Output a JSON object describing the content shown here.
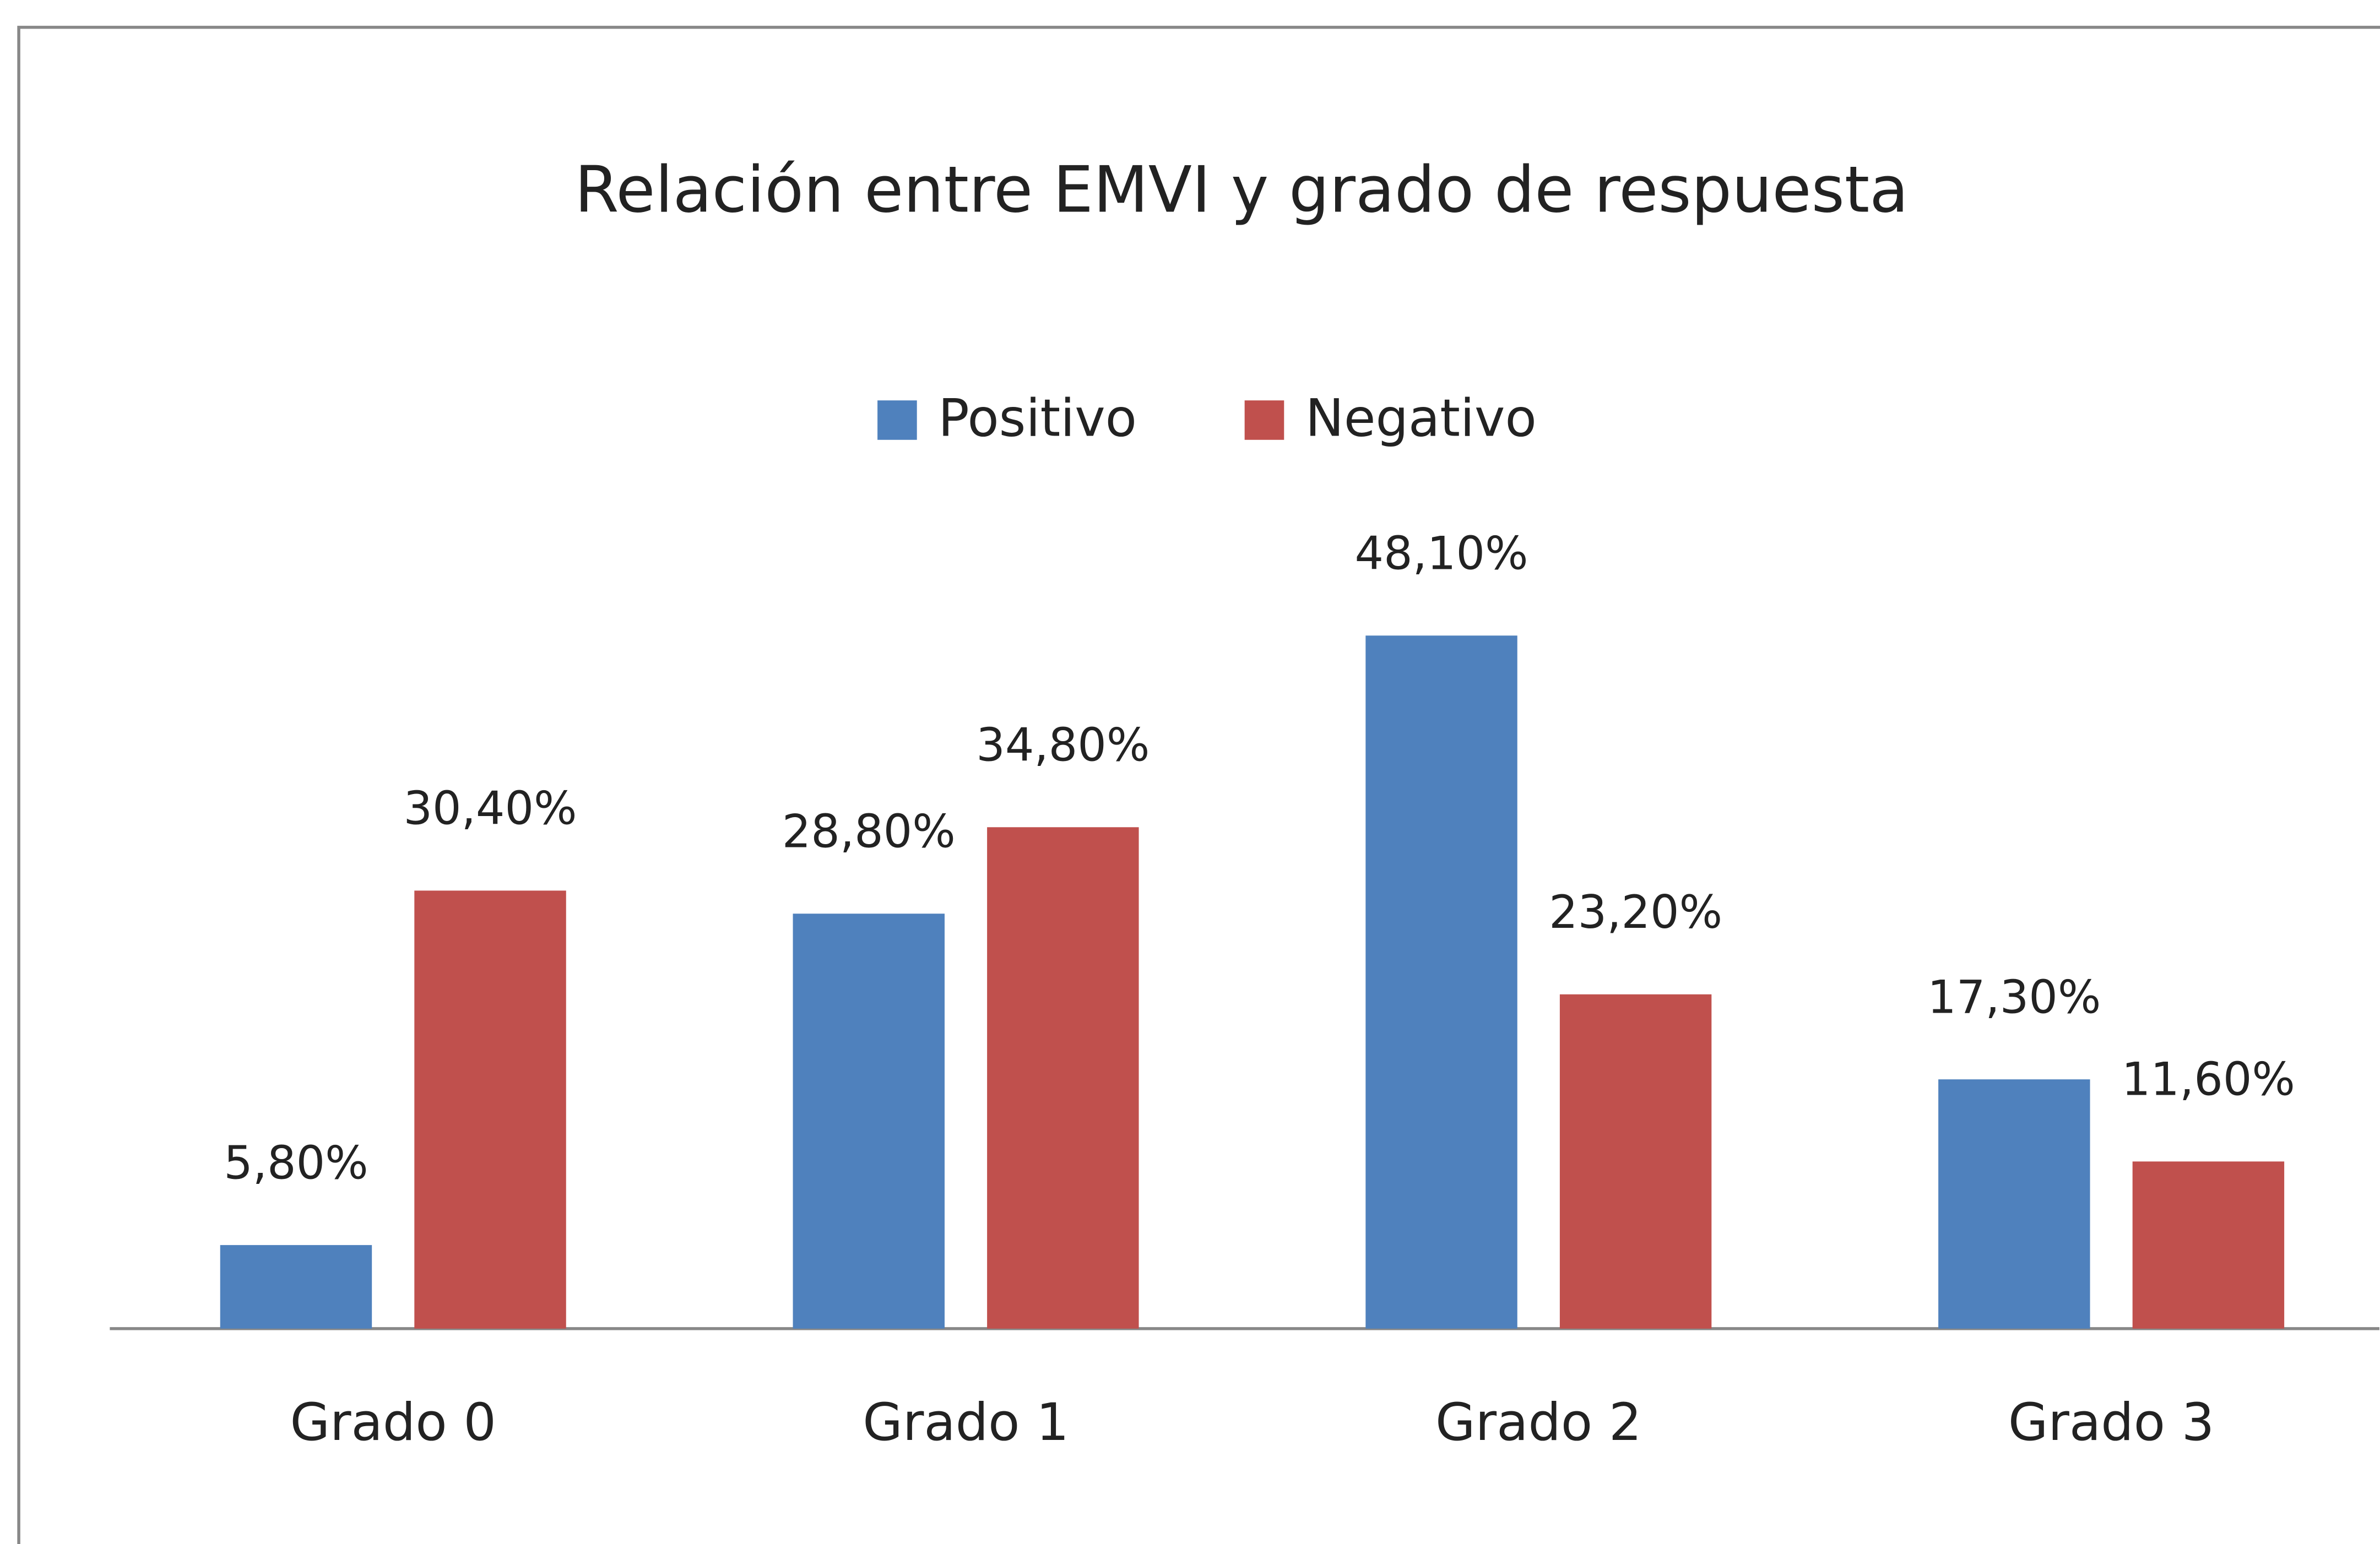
{
  "chart_data": {
    "type": "bar",
    "title": "Relación entre EMVI y grado de respuesta",
    "categories": [
      "Grado 0",
      "Grado 1",
      "Grado 2",
      "Grado 3"
    ],
    "series": [
      {
        "name": "Positivo",
        "color": "#4f81bd",
        "values": [
          5.8,
          28.8,
          48.1,
          17.3
        ],
        "value_labels": [
          "5,80%",
          "28,80%",
          "48,10%",
          "17,30%"
        ]
      },
      {
        "name": "Negativo",
        "color": "#c0504d",
        "values": [
          30.4,
          34.8,
          23.2,
          11.6
        ],
        "value_labels": [
          "30,40%",
          "34,80%",
          "23,20%",
          "11,60%"
        ]
      }
    ]
  }
}
